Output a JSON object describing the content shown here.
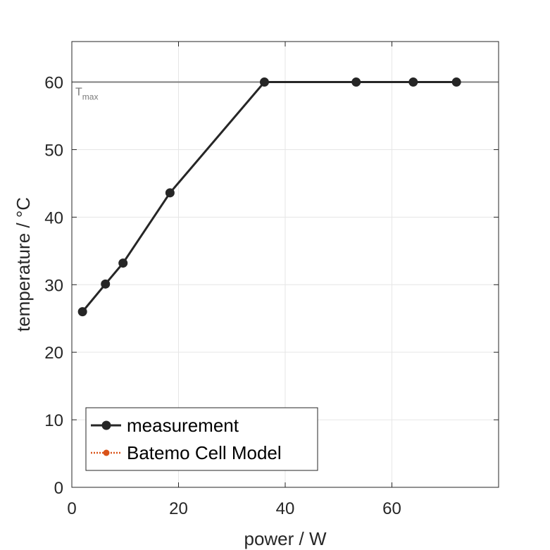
{
  "chart_data": {
    "type": "line",
    "xlabel": "power / W",
    "ylabel": "temperature / °C",
    "xlim": [
      0,
      80
    ],
    "ylim": [
      0,
      66
    ],
    "xticks": [
      0,
      20,
      40,
      60
    ],
    "yticks": [
      0,
      10,
      20,
      30,
      40,
      50,
      60
    ],
    "grid": true,
    "legend_position": "bottom-left",
    "series": [
      {
        "name": "measurement",
        "color": "#262626",
        "style": "solid",
        "marker": "circle",
        "x": [
          2,
          6.3,
          9.6,
          18.4,
          36.1,
          53.3,
          64,
          72.1
        ],
        "y": [
          26,
          30.1,
          33.2,
          43.6,
          60,
          60,
          60,
          60
        ]
      },
      {
        "name": "Batemo Cell Model",
        "color": "#D95319",
        "style": "dotted",
        "marker": "circle",
        "x": [],
        "y": []
      }
    ],
    "reference_line": {
      "y": 60,
      "label": "T",
      "label_sub": "max",
      "color": "#808080"
    }
  }
}
